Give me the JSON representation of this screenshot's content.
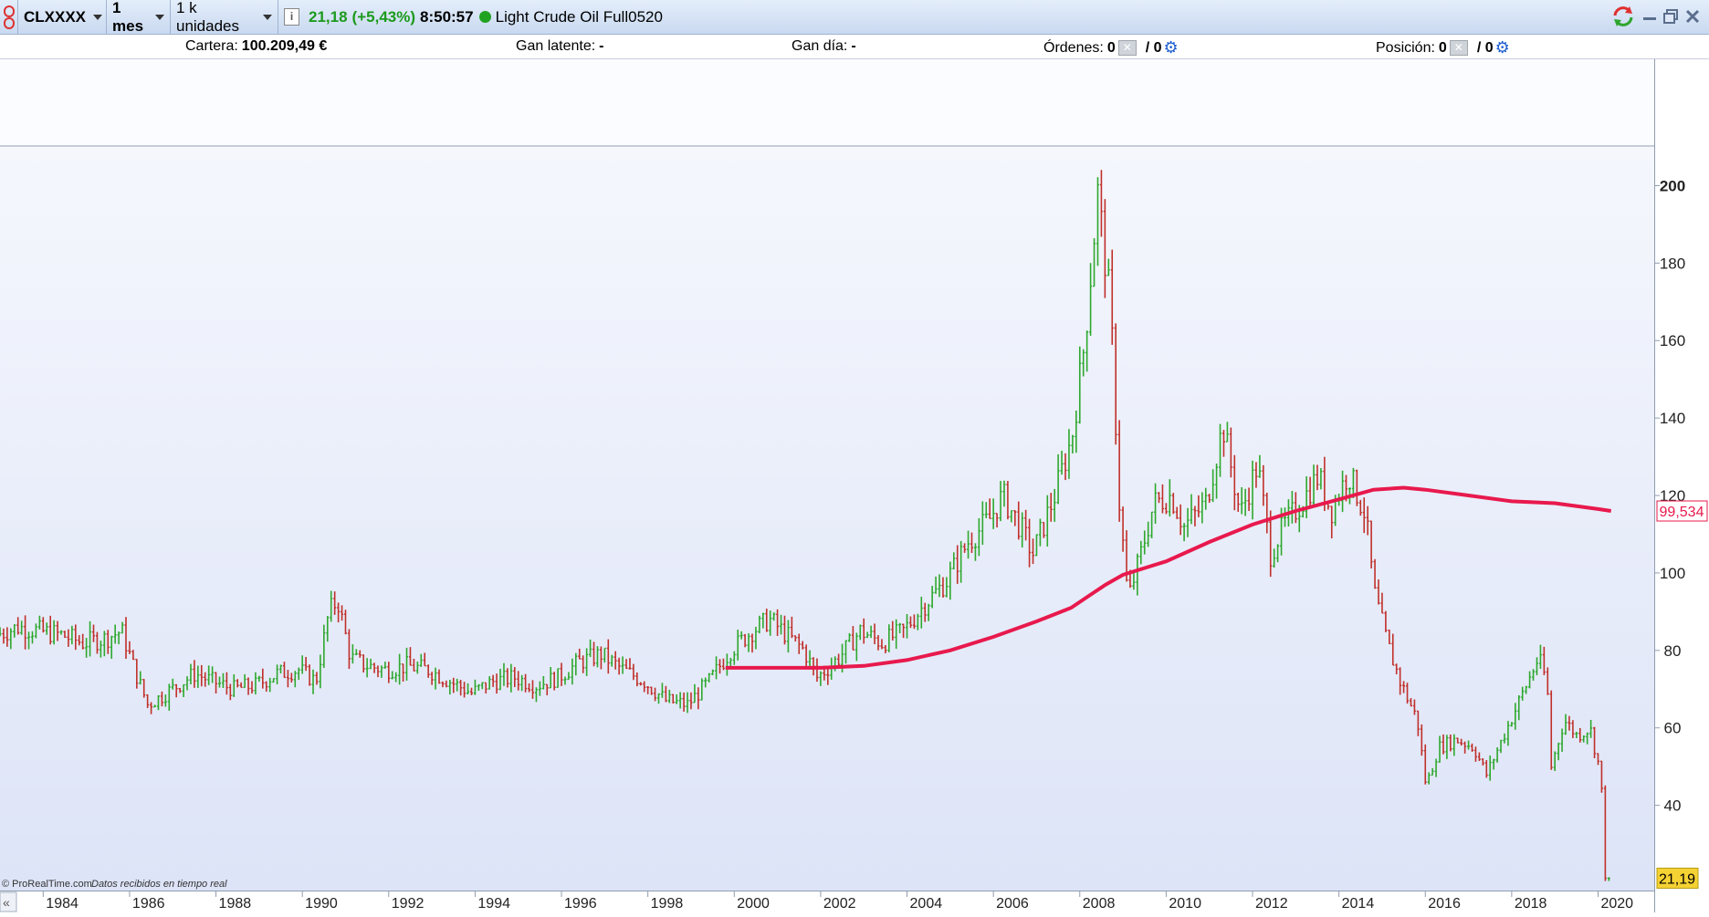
{
  "toolbar": {
    "symbol": "CLXXXX",
    "timeframe": "1 mes",
    "units": "1 k unidades",
    "price": "21,18",
    "change": "(+5,43%)",
    "time": "8:50:57",
    "instrument": "Light Crude Oil Full0520"
  },
  "infobar": {
    "cartera_label": "Cartera:",
    "cartera_value": "100.209,49 €",
    "latente_label": "Gan latente:",
    "latente_value": "-",
    "dia_label": "Gan día:",
    "dia_value": "-",
    "ordenes_label": "Órdenes:",
    "ordenes_a": "0",
    "ordenes_b": "/ 0",
    "posicion_label": "Posición:",
    "posicion_a": "0",
    "posicion_b": "/ 0"
  },
  "footer": {
    "brand": "© ProRealTime.com",
    "realtime": "Datos recibidos en tiempo real"
  },
  "colors": {
    "up": "#2ea82e",
    "down": "#c0302a",
    "ma": "#e8194d",
    "last_price_bg": "#f5d233",
    "ma_label": "#e8194d"
  },
  "chart_data": {
    "type": "candlestick",
    "title": "",
    "xlabel": "",
    "ylabel": "",
    "ylim": [
      18,
      210
    ],
    "xlim": [
      1983.0,
      2021.3
    ],
    "yticks": [
      40,
      60,
      80,
      100,
      120,
      140,
      160,
      180,
      200
    ],
    "ytick_labels": [
      "40",
      "60",
      "80",
      "100",
      "120",
      "140",
      "160",
      "180",
      "200"
    ],
    "xticks": [
      1984,
      1986,
      1988,
      1990,
      1992,
      1994,
      1996,
      1998,
      2000,
      2002,
      2004,
      2006,
      2008,
      2010,
      2012,
      2014,
      2016,
      2018,
      2020
    ],
    "xtick_labels": [
      "1984",
      "1986",
      "1988",
      "1990",
      "1992",
      "1994",
      "1996",
      "1998",
      "2000",
      "2002",
      "2004",
      "2006",
      "2008",
      "2010",
      "2012",
      "2014",
      "2016",
      "2018",
      "2020"
    ],
    "price_path": [
      [
        1983.0,
        84
      ],
      [
        1983.5,
        86
      ],
      [
        1984.0,
        85
      ],
      [
        1984.5,
        84
      ],
      [
        1985.0,
        82
      ],
      [
        1985.5,
        83
      ],
      [
        1985.9,
        85
      ],
      [
        1986.2,
        75
      ],
      [
        1986.5,
        66
      ],
      [
        1986.8,
        68
      ],
      [
        1987.2,
        71
      ],
      [
        1987.6,
        74
      ],
      [
        1988.0,
        72
      ],
      [
        1988.5,
        70
      ],
      [
        1989.0,
        71
      ],
      [
        1989.5,
        74
      ],
      [
        1990.0,
        75
      ],
      [
        1990.4,
        72
      ],
      [
        1990.7,
        90
      ],
      [
        1990.9,
        93
      ],
      [
        1991.2,
        78
      ],
      [
        1991.6,
        76
      ],
      [
        1992.0,
        75
      ],
      [
        1992.5,
        76
      ],
      [
        1993.0,
        75
      ],
      [
        1993.5,
        72
      ],
      [
        1994.0,
        69
      ],
      [
        1994.5,
        72
      ],
      [
        1995.0,
        73
      ],
      [
        1995.5,
        71
      ],
      [
        1996.0,
        73
      ],
      [
        1996.5,
        77
      ],
      [
        1997.0,
        79
      ],
      [
        1997.5,
        75
      ],
      [
        1998.0,
        72
      ],
      [
        1998.5,
        67
      ],
      [
        1999.0,
        66
      ],
      [
        1999.5,
        72
      ],
      [
        2000.0,
        80
      ],
      [
        2000.5,
        85
      ],
      [
        2000.9,
        88
      ],
      [
        2001.3,
        84
      ],
      [
        2001.7,
        80
      ],
      [
        2002.0,
        73
      ],
      [
        2002.5,
        78
      ],
      [
        2003.0,
        85
      ],
      [
        2003.5,
        82
      ],
      [
        2004.0,
        85
      ],
      [
        2004.5,
        92
      ],
      [
        2005.0,
        98
      ],
      [
        2005.5,
        108
      ],
      [
        2006.0,
        114
      ],
      [
        2006.3,
        120
      ],
      [
        2006.7,
        112
      ],
      [
        2007.0,
        105
      ],
      [
        2007.5,
        120
      ],
      [
        2007.9,
        135
      ],
      [
        2008.2,
        160
      ],
      [
        2008.5,
        198
      ],
      [
        2008.8,
        168
      ],
      [
        2009.0,
        118
      ],
      [
        2009.2,
        93
      ],
      [
        2009.5,
        105
      ],
      [
        2009.8,
        118
      ],
      [
        2010.2,
        120
      ],
      [
        2010.5,
        112
      ],
      [
        2011.0,
        118
      ],
      [
        2011.4,
        138
      ],
      [
        2011.8,
        115
      ],
      [
        2012.2,
        128
      ],
      [
        2012.5,
        105
      ],
      [
        2012.8,
        112
      ],
      [
        2013.2,
        118
      ],
      [
        2013.6,
        125
      ],
      [
        2013.9,
        116
      ],
      [
        2014.3,
        126
      ],
      [
        2014.7,
        115
      ],
      [
        2014.9,
        95
      ],
      [
        2015.2,
        82
      ],
      [
        2015.5,
        72
      ],
      [
        2015.9,
        62
      ],
      [
        2016.1,
        45
      ],
      [
        2016.4,
        55
      ],
      [
        2016.8,
        57
      ],
      [
        2017.2,
        55
      ],
      [
        2017.5,
        48
      ],
      [
        2017.9,
        58
      ],
      [
        2018.3,
        68
      ],
      [
        2018.7,
        78
      ],
      [
        2018.9,
        72
      ],
      [
        2019.0,
        50
      ],
      [
        2019.3,
        62
      ],
      [
        2019.6,
        58
      ],
      [
        2019.9,
        60
      ],
      [
        2020.0,
        55
      ],
      [
        2020.15,
        48
      ],
      [
        2020.25,
        21.19
      ]
    ],
    "series": [
      {
        "type": "line",
        "x": [
          1999.8,
          2001.0,
          2002.0,
          2003.0,
          2004.0,
          2005.0,
          2006.0,
          2007.0,
          2007.8,
          2008.2,
          2008.6,
          2009.0,
          2010.0,
          2011.0,
          2012.0,
          2013.0,
          2014.0,
          2014.8,
          2015.5,
          2016.0,
          2017.0,
          2018.0,
          2019.0,
          2020.0,
          2020.3
        ],
        "y": [
          75.5,
          75.5,
          75.5,
          76.0,
          77.5,
          80.0,
          83.5,
          87.5,
          91.0,
          94.0,
          97.0,
          99.5,
          103.0,
          108.0,
          112.5,
          116.0,
          119.0,
          121.5,
          122.0,
          121.5,
          120.0,
          118.5,
          118.0,
          116.5,
          116.0
        ]
      }
    ],
    "ma_label_value": "99,534",
    "last_price_label": "21,19"
  }
}
